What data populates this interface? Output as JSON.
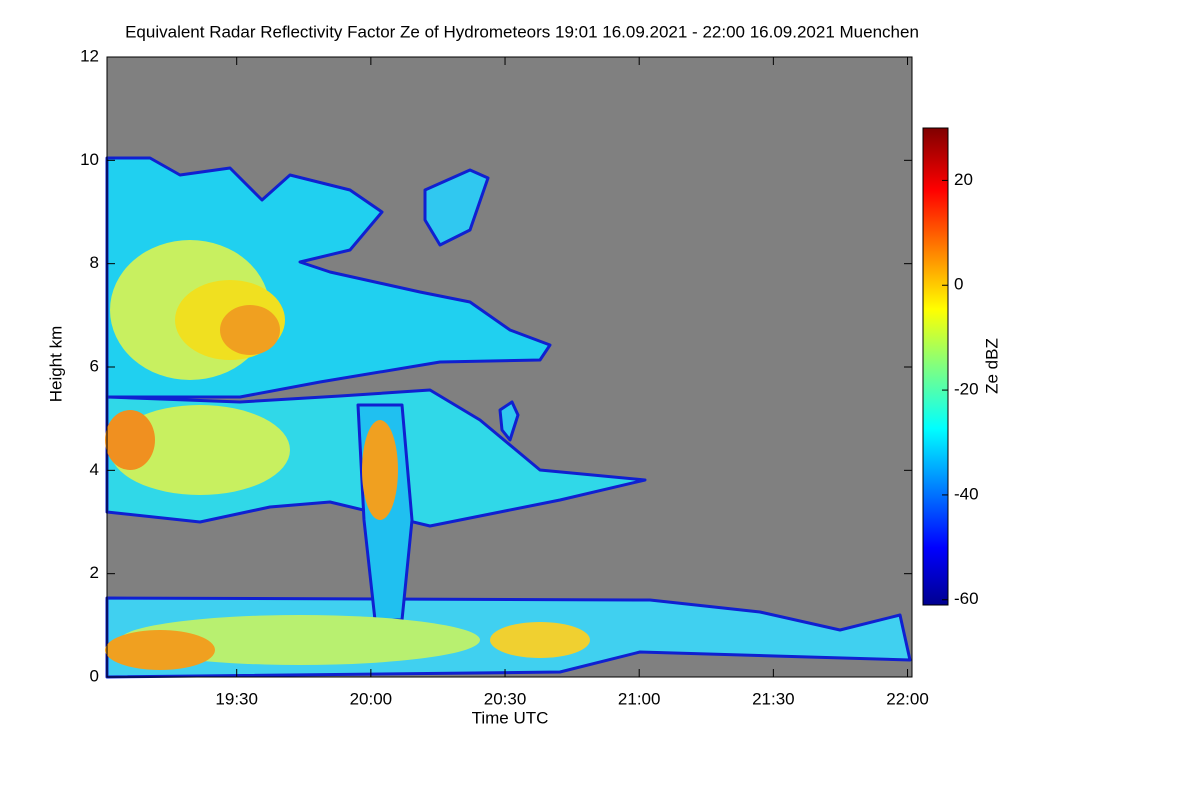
{
  "chart_data": {
    "type": "heatmap",
    "title": "Equivalent Radar Reflectivity Factor Ze of Hydrometeors   19:01 16.09.2021 - 22:00 16.09.2021 Muenchen",
    "x_label": "Time UTC",
    "y_label": "Height km",
    "xlim": [
      1141,
      1321
    ],
    "xticks": [
      {
        "value": 1170,
        "label": "19:30"
      },
      {
        "value": 1200,
        "label": "20:00"
      },
      {
        "value": 1230,
        "label": "20:30"
      },
      {
        "value": 1260,
        "label": "21:00"
      },
      {
        "value": 1290,
        "label": "21:30"
      },
      {
        "value": 1320,
        "label": "22:00"
      }
    ],
    "ylim": [
      0,
      12
    ],
    "yticks": [
      0,
      2,
      4,
      6,
      8,
      10,
      12
    ],
    "colorbar": {
      "label": "Ze dBZ",
      "colormap": "jet",
      "lim": [
        -61,
        30
      ],
      "ticks": [
        -60,
        -40,
        -20,
        0,
        20
      ]
    },
    "background": "#808080"
  }
}
